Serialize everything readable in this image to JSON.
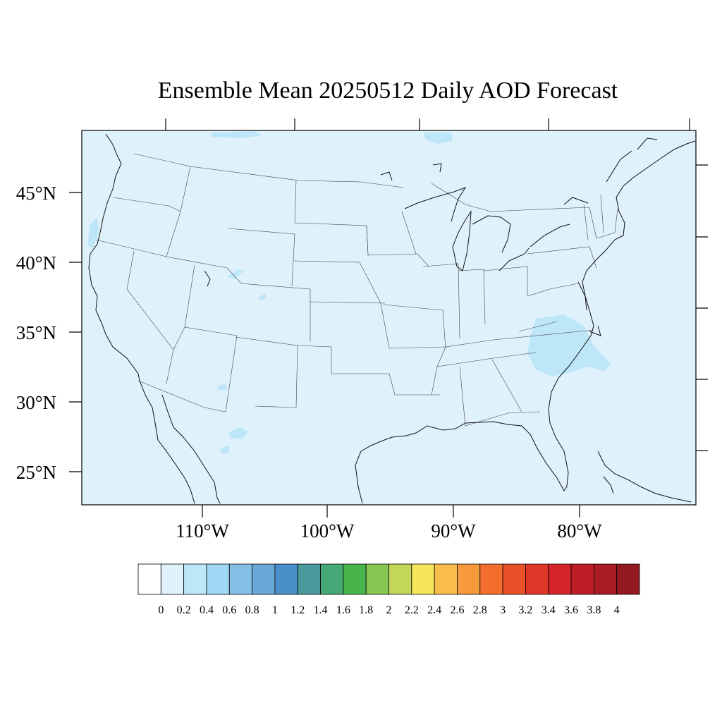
{
  "title": "Ensemble Mean 20250512 Daily AOD Forecast",
  "map": {
    "background_color": "#dff2fb",
    "plume_color": "#bde6f8",
    "lat_labels": [
      "45°N",
      "40°N",
      "35°N",
      "30°N",
      "25°N"
    ],
    "lon_labels": [
      "110°W",
      "100°W",
      "90°W",
      "80°W"
    ]
  },
  "colorbar": {
    "labels": [
      "0",
      "0.2",
      "0.4",
      "0.6",
      "0.8",
      "1",
      "1.2",
      "1.4",
      "1.6",
      "1.8",
      "2",
      "2.2",
      "2.4",
      "2.6",
      "2.8",
      "3",
      "3.2",
      "3.4",
      "3.6",
      "3.8",
      "4"
    ],
    "colors": [
      "#ffffff",
      "#dff2fb",
      "#bde6f8",
      "#a0d7f4",
      "#86bfe6",
      "#6aa8d9",
      "#4a8fca",
      "#4a9b9d",
      "#46a876",
      "#4ab44c",
      "#86c652",
      "#c3d65a",
      "#f7e65c",
      "#f8bd4a",
      "#f69a3d",
      "#f36e2e",
      "#e95229",
      "#e03828",
      "#d6242b",
      "#c01e27",
      "#aa1b23",
      "#94181f"
    ]
  }
}
